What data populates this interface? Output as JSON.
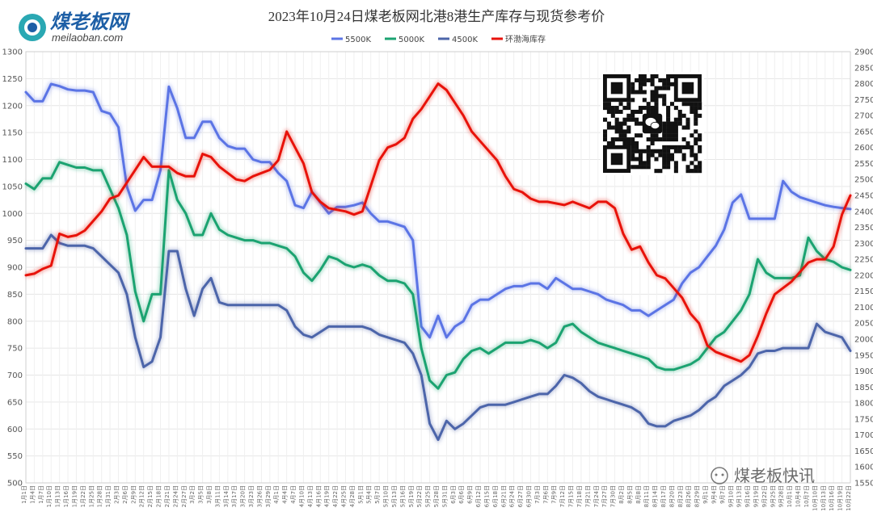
{
  "header": {
    "logo_text": "煤老板网",
    "logo_url": "meilaoban.com"
  },
  "watermark": {
    "text": "煤老板快讯"
  },
  "qr": {
    "icon": "wechat-icon"
  },
  "chart_data": {
    "type": "line",
    "title": "2023年10月24日煤老板网北港8港生产库存与现货参考价",
    "y_left": {
      "min": 500,
      "max": 1300,
      "step": 50
    },
    "y_right": {
      "min": 1550,
      "max": 2900,
      "step": 50
    },
    "grid": true,
    "legend_position": "top-center",
    "x": [
      "1月1日",
      "1月4日",
      "1月7日",
      "1月10日",
      "1月13日",
      "1月16日",
      "1月19日",
      "1月22日",
      "1月25日",
      "1月28日",
      "1月31日",
      "2月3日",
      "2月6日",
      "2月9日",
      "2月12日",
      "2月15日",
      "2月18日",
      "2月21日",
      "2月24日",
      "2月27日",
      "3月2日",
      "3月5日",
      "3月8日",
      "3月11日",
      "3月14日",
      "3月17日",
      "3月20日",
      "3月23日",
      "3月26日",
      "3月29日",
      "4月1日",
      "4月4日",
      "4月7日",
      "4月10日",
      "4月13日",
      "4月16日",
      "4月19日",
      "4月22日",
      "4月25日",
      "4月28日",
      "5月1日",
      "5月4日",
      "5月7日",
      "5月10日",
      "5月13日",
      "5月16日",
      "5月19日",
      "5月22日",
      "5月25日",
      "5月28日",
      "5月31日",
      "6月3日",
      "6月6日",
      "6月9日",
      "6月12日",
      "6月15日",
      "6月18日",
      "6月21日",
      "6月24日",
      "6月27日",
      "6月30日",
      "7月3日",
      "7月6日",
      "7月9日",
      "7月12日",
      "7月15日",
      "7月18日",
      "7月21日",
      "7月24日",
      "7月27日",
      "7月30日",
      "8月2日",
      "8月5日",
      "8月8日",
      "8月11日",
      "8月14日",
      "8月17日",
      "8月20日",
      "8月23日",
      "8月26日",
      "8月29日",
      "9月1日",
      "9月4日",
      "9月7日",
      "9月10日",
      "9月13日",
      "9月16日",
      "9月19日",
      "9月22日",
      "9月25日",
      "9月28日",
      "10月1日",
      "10月4日",
      "10月7日",
      "10月10日",
      "10月13日",
      "10月16日",
      "10月19日",
      "10月22日"
    ],
    "series": [
      {
        "name": "5500K",
        "axis": "left",
        "color": "#5b74e5",
        "values": [
          1225,
          1208,
          1208,
          1240,
          1236,
          1230,
          1228,
          1228,
          1225,
          1190,
          1185,
          1160,
          1050,
          1005,
          1025,
          1025,
          1080,
          1235,
          1195,
          1140,
          1140,
          1170,
          1170,
          1140,
          1125,
          1120,
          1120,
          1100,
          1095,
          1095,
          1075,
          1060,
          1015,
          1010,
          1040,
          1020,
          1000,
          1012,
          1012,
          1015,
          1020,
          1000,
          985,
          985,
          980,
          975,
          950,
          790,
          770,
          810,
          770,
          790,
          800,
          830,
          840,
          840,
          850,
          860,
          865,
          865,
          870,
          870,
          860,
          880,
          870,
          860,
          860,
          855,
          850,
          840,
          835,
          830,
          820,
          820,
          810,
          820,
          830,
          840,
          870,
          890,
          900,
          920,
          940,
          970,
          1020,
          1035,
          990,
          990,
          990,
          990,
          1060,
          1040,
          1030,
          1025,
          1020,
          1015,
          1012,
          1010,
          1008
        ]
      },
      {
        "name": "5000K",
        "axis": "left",
        "color": "#1ba371",
        "values": [
          1055,
          1045,
          1065,
          1065,
          1095,
          1090,
          1085,
          1085,
          1080,
          1080,
          1045,
          1010,
          960,
          855,
          800,
          850,
          850,
          1080,
          1025,
          1000,
          960,
          960,
          1000,
          970,
          960,
          955,
          950,
          950,
          945,
          945,
          940,
          935,
          920,
          890,
          875,
          895,
          920,
          915,
          905,
          900,
          905,
          900,
          885,
          875,
          875,
          870,
          850,
          750,
          690,
          675,
          700,
          705,
          730,
          745,
          750,
          740,
          750,
          760,
          760,
          760,
          765,
          760,
          750,
          760,
          790,
          795,
          780,
          770,
          760,
          755,
          750,
          745,
          740,
          735,
          730,
          715,
          710,
          710,
          715,
          720,
          730,
          750,
          770,
          780,
          800,
          820,
          850,
          915,
          890,
          880,
          880,
          880,
          885,
          955,
          930,
          915,
          910,
          900,
          895
        ]
      },
      {
        "name": "4500K",
        "axis": "left",
        "color": "#4c65aa",
        "values": [
          935,
          935,
          935,
          960,
          945,
          940,
          940,
          940,
          935,
          920,
          905,
          890,
          850,
          770,
          715,
          725,
          770,
          930,
          930,
          860,
          810,
          860,
          880,
          835,
          830,
          830,
          830,
          830,
          830,
          830,
          830,
          820,
          790,
          775,
          770,
          780,
          790,
          790,
          790,
          790,
          790,
          785,
          775,
          770,
          765,
          760,
          740,
          700,
          610,
          580,
          615,
          600,
          610,
          625,
          640,
          645,
          645,
          645,
          650,
          655,
          660,
          665,
          665,
          680,
          700,
          695,
          685,
          670,
          660,
          655,
          650,
          645,
          640,
          630,
          610,
          605,
          605,
          615,
          620,
          625,
          635,
          650,
          660,
          680,
          690,
          700,
          715,
          740,
          745,
          745,
          750,
          750,
          750,
          750,
          795,
          780,
          775,
          770,
          745
        ]
      },
      {
        "name": "环渤海库存",
        "axis": "right",
        "color": "#e8120b",
        "values": [
          2200,
          2205,
          2220,
          2230,
          2330,
          2320,
          2325,
          2340,
          2370,
          2400,
          2440,
          2450,
          2490,
          2530,
          2570,
          2540,
          2540,
          2540,
          2520,
          2510,
          2510,
          2580,
          2570,
          2540,
          2520,
          2500,
          2495,
          2510,
          2520,
          2530,
          2560,
          2650,
          2600,
          2550,
          2460,
          2430,
          2410,
          2405,
          2400,
          2390,
          2400,
          2480,
          2560,
          2600,
          2610,
          2630,
          2690,
          2720,
          2760,
          2800,
          2780,
          2740,
          2700,
          2650,
          2620,
          2590,
          2560,
          2510,
          2470,
          2460,
          2440,
          2430,
          2430,
          2425,
          2420,
          2430,
          2420,
          2410,
          2430,
          2430,
          2410,
          2330,
          2280,
          2290,
          2240,
          2200,
          2190,
          2160,
          2130,
          2080,
          2050,
          1980,
          1960,
          1950,
          1940,
          1930,
          1950,
          2010,
          2080,
          2140,
          2160,
          2180,
          2210,
          2240,
          2250,
          2250,
          2290,
          2390,
          2450
        ]
      }
    ]
  }
}
